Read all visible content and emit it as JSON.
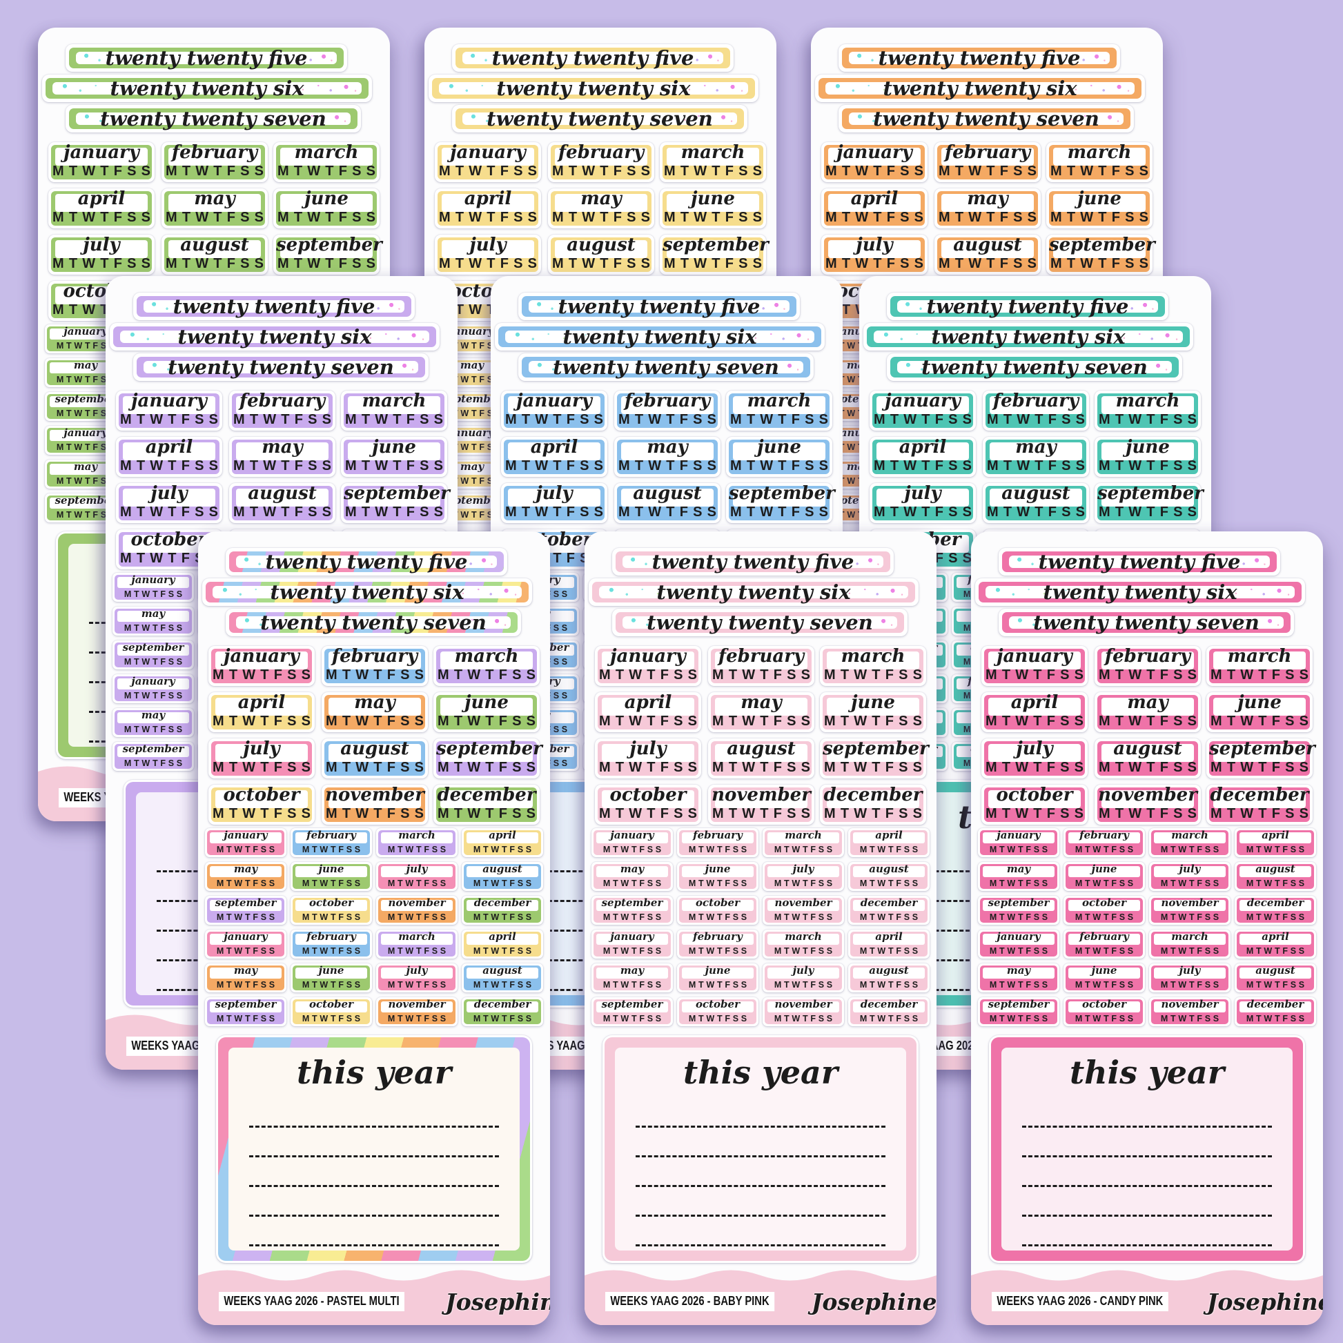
{
  "page": {
    "background_color": "#c7bce8",
    "sheet_color": "#fcfcfd",
    "footer_band_color": "#f5cbd9"
  },
  "strings": {
    "year_banners": [
      "twenty twenty five",
      "twenty twenty six",
      "twenty twenty seven"
    ],
    "months": [
      "january",
      "february",
      "march",
      "april",
      "may",
      "june",
      "july",
      "august",
      "september",
      "october",
      "november",
      "december"
    ],
    "day_letters": "MTWTFSS",
    "this_year_label": "this year",
    "brand_signature": "Josephine Bow"
  },
  "rainbow_stripe_colors": [
    "#f48fb5",
    "#9fcdf0",
    "#cdb3f1",
    "#aadb8a",
    "#f8ec93",
    "#f7b36e"
  ],
  "multi_month_cycle": [
    "#f48fb5",
    "#8bc0ec",
    "#c9abee",
    "#f6dd8d",
    "#f4a964",
    "#9dc96f"
  ],
  "sheets": [
    {
      "id": "green",
      "color": "#9dc96f",
      "box_bg": "#f3f8eb",
      "footer_label": "WEEKS YAAG 2026 -",
      "row": 0,
      "col": 0
    },
    {
      "id": "yellow",
      "color": "#f6dd8d",
      "box_bg": "#fcf8e8",
      "footer_label": "WEEKS YAAG 2026 -",
      "row": 0,
      "col": 1
    },
    {
      "id": "orange",
      "color": "#f4a963",
      "box_bg": "#fdf3e9",
      "footer_label": "WEEKS YAAG 2026 -",
      "row": 0,
      "col": 2
    },
    {
      "id": "lilac",
      "color": "#c9abee",
      "box_bg": "#f5effb",
      "footer_label": "WEEKS YAAG 2026 -",
      "row": 1,
      "col": 0
    },
    {
      "id": "blue",
      "color": "#8bc0ec",
      "box_bg": "#ecf4fc",
      "footer_label": "WEEKS YAAG 2026 -",
      "row": 1,
      "col": 1
    },
    {
      "id": "teal",
      "color": "#4ec5b3",
      "box_bg": "#e9f8f5",
      "footer_label": "WEEKS YAAG 2026 -",
      "row": 1,
      "col": 2
    },
    {
      "id": "pastel-multi",
      "multi": true,
      "box_bg": "#fdf8f2",
      "footer_label": "WEEKS YAAG 2026 - PASTEL MULTI",
      "row": 2,
      "col": 0
    },
    {
      "id": "baby-pink",
      "color": "#f6c9d8",
      "box_bg": "#fdf4f7",
      "footer_label": "WEEKS YAAG 2026 - BABY PINK",
      "row": 2,
      "col": 1
    },
    {
      "id": "candy-pink",
      "color": "#ef73a8",
      "box_bg": "#fbecf3",
      "footer_label": "WEEKS YAAG 2026 - CANDY PINK",
      "row": 2,
      "col": 2
    }
  ]
}
